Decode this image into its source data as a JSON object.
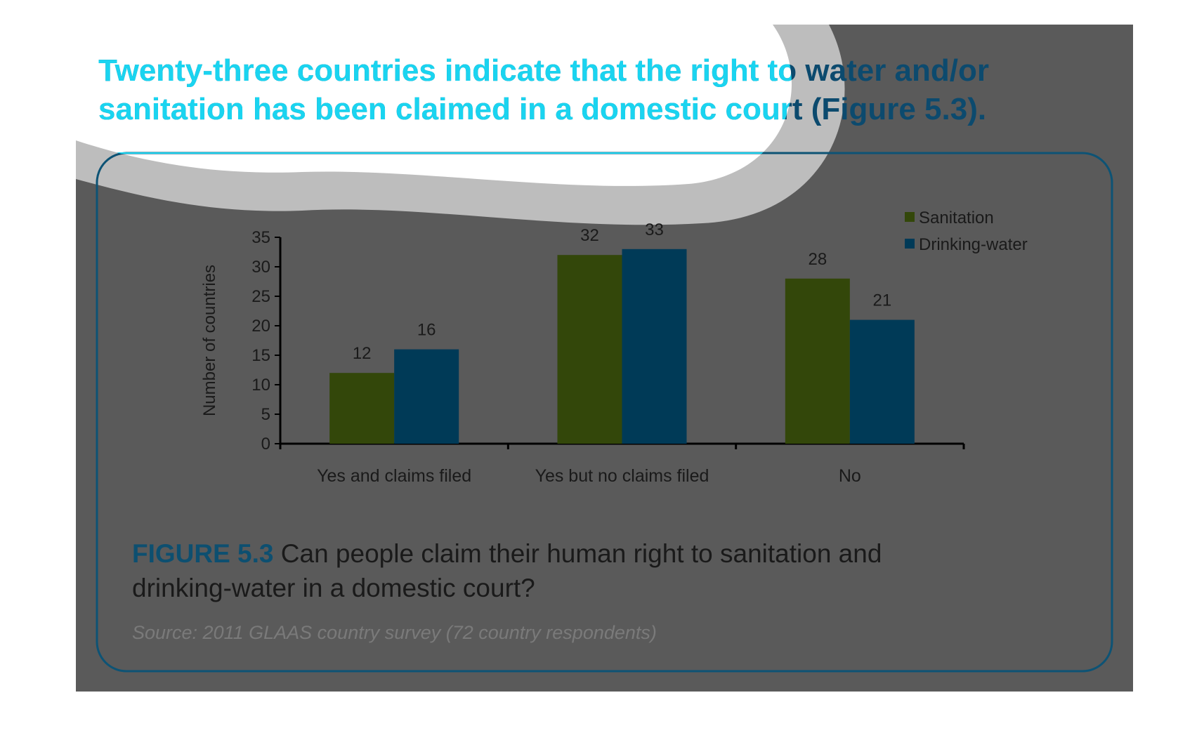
{
  "chart_data": {
    "type": "bar",
    "title": [
      "Twenty-three countries indicate that the right to water and/or",
      "sanitation has been claimed in a domestic court (Figure 5.3)."
    ],
    "categories": [
      "Yes and claims filed",
      "Yes but no claims filed",
      "No"
    ],
    "series": [
      {
        "name": "Sanitation",
        "color": "#33470a",
        "values": [
          12,
          32,
          28
        ]
      },
      {
        "name": "Drinking-water",
        "color": "#003a57",
        "values": [
          16,
          33,
          21
        ]
      }
    ],
    "ylabel": "Number of countries",
    "ylim": [
      0,
      35
    ],
    "yticks": [
      0,
      5,
      10,
      15,
      20,
      25,
      30,
      35
    ],
    "grid": false,
    "legend": "top-right",
    "caption_label": "FIGURE 5.3",
    "caption": [
      "Can people claim their human right to sanitation and",
      "drinking-water in a domestic court?"
    ],
    "source": "Source: 2011 GLAAS country survey (72 country respondents)"
  }
}
